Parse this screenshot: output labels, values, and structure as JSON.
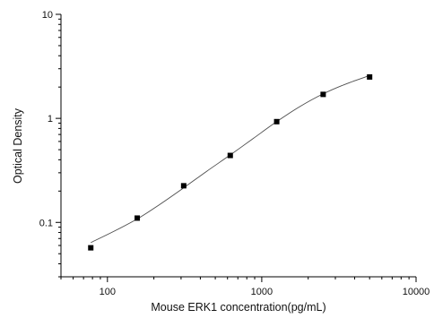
{
  "chart_data": {
    "type": "scatter",
    "xscale": "log",
    "yscale": "log",
    "xlabel": "Mouse ERK1 concentration(pg/mL)",
    "ylabel": "Optical Density",
    "xlim": [
      50,
      10000
    ],
    "ylim": [
      0.03,
      10
    ],
    "x_ticks": [
      100,
      1000,
      10000
    ],
    "x_tick_labels": [
      "100",
      "1000",
      "10000"
    ],
    "y_ticks": [
      0.1,
      1,
      10
    ],
    "y_tick_labels": [
      "0.1",
      "1",
      "10"
    ],
    "grid": false,
    "series": [
      {
        "marker": "square",
        "x": [
          78,
          156,
          312,
          625,
          1250,
          2500,
          5000
        ],
        "y": [
          0.057,
          0.11,
          0.225,
          0.44,
          0.93,
          1.7,
          2.5
        ]
      }
    ],
    "fit_curve": {
      "style": "line",
      "color": "#4d4d4d",
      "x": [
        78,
        110,
        156,
        220,
        312,
        440,
        625,
        880,
        1250,
        1770,
        2500,
        3540,
        5000
      ],
      "y": [
        0.064,
        0.082,
        0.108,
        0.15,
        0.215,
        0.31,
        0.445,
        0.64,
        0.93,
        1.3,
        1.72,
        2.15,
        2.58
      ]
    }
  }
}
